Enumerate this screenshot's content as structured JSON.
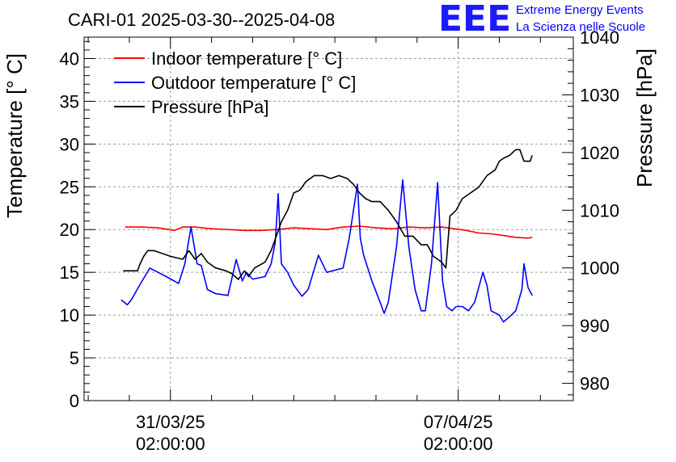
{
  "chart_data": {
    "type": "line",
    "title": "CARI-01 2025-03-30--2025-04-08",
    "logo": {
      "letters": "EEE",
      "line1": "Extreme Energy Events",
      "line2": "La Scienza nelle Scuole"
    },
    "ylabel_left": "Temperature [° C]",
    "ylabel_right": "Pressure [hPa]",
    "x_ticks": [
      {
        "l1": "31/03/25",
        "l2": "02:00:00",
        "x": 1.0
      },
      {
        "l1": "07/04/25",
        "l2": "02:00:00",
        "x": 8.0
      }
    ],
    "xlim": [
      -1.1,
      10.8
    ],
    "ylim_left": [
      0,
      42.5
    ],
    "ylim_right": [
      977,
      1040
    ],
    "left_ticks": [
      0,
      5,
      10,
      15,
      20,
      25,
      30,
      35,
      40
    ],
    "right_ticks": [
      980,
      990,
      1000,
      1010,
      1020,
      1030,
      1040
    ],
    "grid": true,
    "legend_position": "top-left",
    "colors": {
      "indoor": "#ff0000",
      "outdoor": "#0000ff",
      "pressure": "#000000"
    },
    "series": [
      {
        "name": "Indoor temperature [° C]",
        "axis": "left",
        "color": "#ff0000",
        "x": [
          -0.1,
          0.3,
          0.7,
          1.1,
          1.3,
          1.6,
          2.0,
          2.4,
          2.8,
          3.2,
          3.6,
          4.0,
          4.4,
          4.8,
          5.2,
          5.6,
          6.0,
          6.4,
          6.8,
          7.2,
          7.6,
          7.9,
          8.2,
          8.5,
          8.8,
          9.1,
          9.4,
          9.7,
          9.8
        ],
        "values": [
          20.3,
          20.3,
          20.2,
          19.9,
          20.3,
          20.3,
          20.1,
          20.0,
          19.9,
          19.9,
          20.0,
          20.2,
          20.1,
          20.0,
          20.3,
          20.4,
          20.2,
          20.1,
          20.3,
          20.2,
          20.3,
          20.1,
          19.9,
          19.6,
          19.5,
          19.3,
          19.1,
          19.0,
          19.1
        ]
      },
      {
        "name": "Outdoor temperature [° C]",
        "axis": "left",
        "color": "#0000ff",
        "x": [
          -0.2,
          -0.05,
          0.05,
          0.25,
          0.5,
          0.7,
          0.9,
          1.2,
          1.35,
          1.5,
          1.65,
          1.75,
          1.9,
          2.1,
          2.4,
          2.6,
          2.75,
          2.85,
          3.0,
          3.3,
          3.45,
          3.55,
          3.62,
          3.7,
          3.85,
          4.0,
          4.2,
          4.35,
          4.6,
          4.8,
          5.2,
          5.35,
          5.55,
          5.62,
          5.7,
          5.9,
          6.1,
          6.2,
          6.3,
          6.5,
          6.65,
          6.8,
          6.95,
          7.1,
          7.2,
          7.35,
          7.5,
          7.62,
          7.72,
          7.85,
          7.95,
          8.1,
          8.25,
          8.4,
          8.6,
          8.7,
          8.8,
          9.0,
          9.1,
          9.25,
          9.4,
          9.55,
          9.6,
          9.7,
          9.8
        ],
        "values": [
          11.8,
          11.2,
          11.8,
          13.5,
          15.5,
          15.0,
          14.5,
          13.7,
          16.0,
          20.3,
          16.0,
          15.8,
          13.0,
          12.5,
          12.3,
          16.5,
          14.0,
          15.0,
          14.2,
          14.5,
          16.0,
          18.5,
          24.2,
          16.0,
          15.0,
          13.5,
          12.2,
          13.0,
          17.0,
          15.0,
          15.5,
          19.0,
          25.3,
          19.0,
          17.0,
          14.0,
          11.5,
          10.2,
          11.5,
          18.0,
          25.8,
          18.0,
          13.0,
          10.5,
          10.5,
          16.0,
          25.5,
          14.0,
          11.0,
          10.5,
          11.0,
          11.0,
          10.5,
          11.5,
          15.0,
          13.5,
          10.5,
          10.0,
          9.2,
          9.8,
          10.5,
          13.0,
          16.0,
          13.2,
          12.3
        ]
      },
      {
        "name": "Pressure [hPa]",
        "axis": "right",
        "color": "#000000",
        "x": [
          -0.15,
          0.2,
          0.25,
          0.35,
          0.45,
          0.6,
          1.0,
          1.3,
          1.45,
          1.6,
          1.75,
          1.9,
          2.1,
          2.35,
          2.5,
          2.65,
          2.8,
          2.9,
          3.05,
          3.3,
          3.45,
          3.55,
          3.7,
          3.85,
          4.0,
          4.15,
          4.3,
          4.5,
          4.7,
          4.9,
          5.1,
          5.3,
          5.45,
          5.6,
          5.75,
          5.9,
          6.1,
          6.3,
          6.5,
          6.7,
          6.9,
          7.1,
          7.25,
          7.4,
          7.6,
          7.7,
          7.8,
          7.95,
          8.1,
          8.3,
          8.5,
          8.7,
          8.9,
          9.0,
          9.1,
          9.25,
          9.4,
          9.5,
          9.6,
          9.75,
          9.8
        ],
        "values": [
          999.5,
          999.5,
          1000.5,
          1002,
          1003,
          1003,
          1002,
          1001.5,
          1003,
          1001.5,
          1002.5,
          1001,
          1000,
          999.5,
          999,
          998,
          999.5,
          998.5,
          1000,
          1001,
          1003,
          1005,
          1008,
          1010,
          1013,
          1013.5,
          1015,
          1016,
          1016,
          1015.5,
          1016,
          1015.5,
          1014.5,
          1013,
          1012,
          1011.5,
          1011.5,
          1010,
          1008,
          1005.5,
          1005.5,
          1004,
          1004,
          1002,
          1001,
          1000,
          1009,
          1010,
          1012,
          1013,
          1014,
          1016,
          1017,
          1018.5,
          1019,
          1019.5,
          1020.5,
          1020.5,
          1018.5,
          1018.5,
          1019.5
        ]
      }
    ]
  }
}
